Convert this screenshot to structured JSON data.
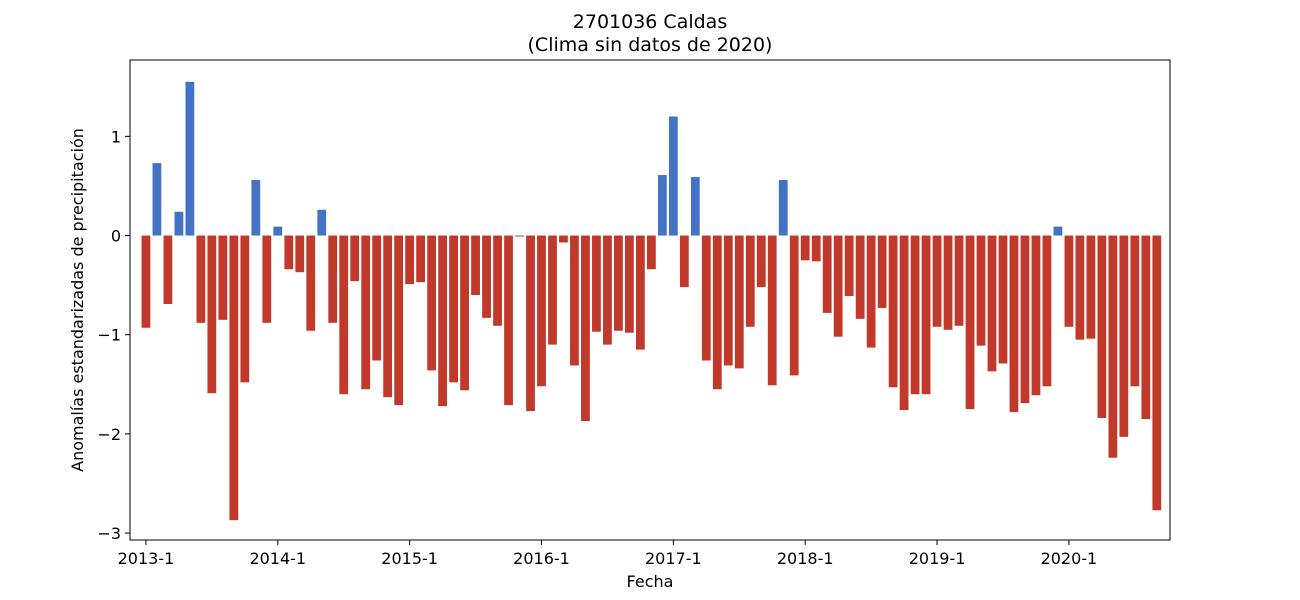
{
  "chart_data": {
    "type": "bar",
    "title": "2701036 Caldas",
    "subtitle": "(Clima sin datos de 2020)",
    "xlabel": "Fecha",
    "ylabel": "Anomalías estandarizadas de precipitación",
    "x_tick_labels": [
      "2013-1",
      "2014-1",
      "2015-1",
      "2016-1",
      "2017-1",
      "2018-1",
      "2019-1",
      "2020-1"
    ],
    "y_ticks": [
      1,
      0,
      -1,
      -2,
      -3
    ],
    "y_tick_labels": [
      "1",
      "0",
      "−1",
      "−2",
      "−3"
    ],
    "ylim": [
      -3.07,
      1.77
    ],
    "grid": false,
    "colors": {
      "positive": "#4472c4",
      "negative": "#c0392b"
    },
    "start": "2013-01",
    "end": "2020-10",
    "values": [
      -0.93,
      0.73,
      -0.69,
      0.24,
      1.55,
      -0.88,
      -1.59,
      -0.85,
      -2.87,
      -1.48,
      0.56,
      -0.88,
      0.09,
      -0.34,
      -0.37,
      -0.96,
      0.26,
      -0.88,
      -1.6,
      -0.46,
      -1.55,
      -1.26,
      -1.63,
      -1.71,
      -0.49,
      -0.47,
      -1.36,
      -1.72,
      -1.48,
      -1.56,
      -0.6,
      -0.83,
      -0.91,
      -1.71,
      -0.01,
      -1.77,
      -1.52,
      -1.1,
      -0.07,
      -1.31,
      -1.87,
      -0.97,
      -1.1,
      -0.96,
      -0.98,
      -1.15,
      -0.34,
      0.61,
      1.2,
      -0.52,
      0.59,
      -1.26,
      -1.55,
      -1.31,
      -1.34,
      -0.92,
      -0.52,
      -1.51,
      0.56,
      -1.41,
      -0.25,
      -0.26,
      -0.78,
      -1.02,
      -0.61,
      -0.84,
      -1.13,
      -0.73,
      -1.53,
      -1.76,
      -1.6,
      -1.6,
      -0.92,
      -0.95,
      -0.91,
      -1.75,
      -1.11,
      -1.37,
      -1.29,
      -1.78,
      -1.69,
      -1.61,
      -1.52,
      0.09,
      -0.92,
      -1.05,
      -1.04,
      -1.84,
      -2.24,
      -2.03,
      -1.52,
      -1.85,
      -2.77
    ]
  }
}
